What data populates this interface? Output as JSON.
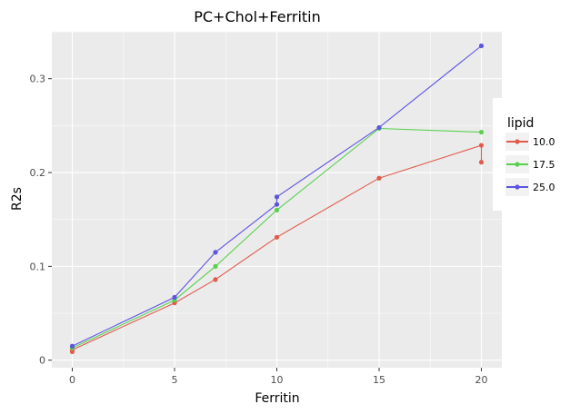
{
  "chart_data": {
    "type": "line",
    "title": "PC+Chol+Ferritin",
    "xlabel": "Ferritin",
    "ylabel": "R2s",
    "xlim": [
      -1,
      21
    ],
    "ylim": [
      -0.008,
      0.35
    ],
    "x_ticks": [
      0,
      5,
      10,
      15,
      20
    ],
    "x_tick_labels": [
      "0",
      "5",
      "10",
      "15",
      "20"
    ],
    "y_ticks": [
      0,
      0.1,
      0.2,
      0.3
    ],
    "y_tick_labels": [
      "0",
      "0.1",
      "0.2",
      "0.3"
    ],
    "grid": true,
    "legend": {
      "title": "lipid",
      "position": "right"
    },
    "series": [
      {
        "name": "10.0",
        "color": "#e15b4d",
        "points": [
          [
            0,
            0.009
          ],
          [
            0,
            0.011
          ],
          [
            5,
            0.061
          ],
          [
            7,
            0.086
          ],
          [
            10,
            0.131
          ],
          [
            15,
            0.194
          ],
          [
            20,
            0.229
          ],
          [
            20,
            0.211
          ]
        ],
        "line": [
          [
            0,
            0.009
          ],
          [
            0,
            0.011
          ],
          [
            5,
            0.061
          ],
          [
            7,
            0.086
          ],
          [
            10,
            0.131
          ],
          [
            15,
            0.194
          ],
          [
            20,
            0.229
          ],
          [
            20,
            0.211
          ]
        ]
      },
      {
        "name": "17.5",
        "color": "#59d14e",
        "points": [
          [
            0,
            0.013
          ],
          [
            5,
            0.064
          ],
          [
            7,
            0.1
          ],
          [
            10,
            0.16
          ],
          [
            15,
            0.247
          ],
          [
            20,
            0.243
          ]
        ],
        "line": [
          [
            0,
            0.013
          ],
          [
            5,
            0.064
          ],
          [
            7,
            0.1
          ],
          [
            10,
            0.16
          ],
          [
            15,
            0.247
          ],
          [
            20,
            0.243
          ]
        ]
      },
      {
        "name": "25.0",
        "color": "#5c55e1",
        "points": [
          [
            0,
            0.015
          ],
          [
            5,
            0.067
          ],
          [
            7,
            0.115
          ],
          [
            10,
            0.166
          ],
          [
            10,
            0.174
          ],
          [
            15,
            0.248
          ],
          [
            20,
            0.335
          ]
        ],
        "line": [
          [
            0,
            0.015
          ],
          [
            5,
            0.067
          ],
          [
            7,
            0.115
          ],
          [
            10,
            0.166
          ],
          [
            10,
            0.174
          ],
          [
            15,
            0.248
          ],
          [
            20,
            0.335
          ]
        ]
      }
    ]
  }
}
